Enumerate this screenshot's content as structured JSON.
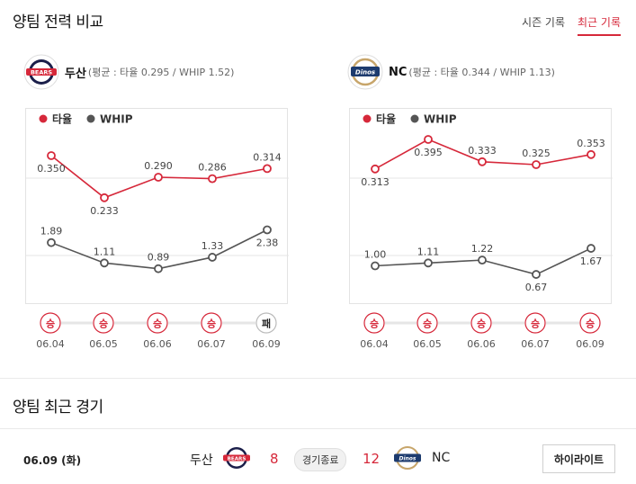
{
  "section1_title": "양팀 전력 비교",
  "tabs": [
    {
      "label": "시즌 기록",
      "active": false
    },
    {
      "label": "최근 기록",
      "active": true
    }
  ],
  "colors": {
    "avg": "#d6283a",
    "whip": "#555555",
    "win": "#d6283a",
    "loss": "#222222"
  },
  "teams": [
    {
      "name": "두산",
      "summary": "(평균 : 타율 0.295 / WHIP 1.52)",
      "logo_text": "BEARS",
      "logo_icon": "bears-logo-icon"
    },
    {
      "name": "NC",
      "summary": "(평균 : 타율 0.344 / WHIP 1.13)",
      "logo_text": "Dinos",
      "logo_icon": "dinos-logo-icon"
    }
  ],
  "chart_data": [
    {
      "type": "line",
      "legend": [
        "타율",
        "WHIP"
      ],
      "legend_placement": "top-left",
      "grid": "horizontal",
      "x": [
        "06.04",
        "06.05",
        "06.06",
        "06.07",
        "06.09"
      ],
      "series": [
        {
          "name": "타율",
          "values": [
            0.35,
            0.233,
            0.29,
            0.286,
            0.314
          ],
          "labels": [
            "0.350",
            "0.233",
            "0.290",
            "0.286",
            "0.314"
          ]
        },
        {
          "name": "WHIP",
          "values": [
            1.89,
            1.11,
            0.89,
            1.33,
            2.38
          ],
          "labels": [
            "1.89",
            "1.11",
            "0.89",
            "1.33",
            "2.38"
          ]
        }
      ],
      "results": [
        "승",
        "승",
        "승",
        "승",
        "패"
      ]
    },
    {
      "type": "line",
      "legend": [
        "타율",
        "WHIP"
      ],
      "legend_placement": "top-left",
      "grid": "horizontal",
      "x": [
        "06.04",
        "06.05",
        "06.06",
        "06.07",
        "06.09"
      ],
      "series": [
        {
          "name": "타율",
          "values": [
            0.313,
            0.395,
            0.333,
            0.325,
            0.353
          ],
          "labels": [
            "0.313",
            "0.395",
            "0.333",
            "0.325",
            "0.353"
          ]
        },
        {
          "name": "WHIP",
          "values": [
            1.0,
            1.11,
            1.22,
            0.67,
            1.67
          ],
          "labels": [
            "1.00",
            "1.11",
            "1.22",
            "0.67",
            "1.67"
          ]
        }
      ],
      "results": [
        "승",
        "승",
        "승",
        "승",
        "승"
      ]
    }
  ],
  "section2_title": "양팀 최근 경기",
  "game": {
    "date": "06.09 (화)",
    "home": "두산",
    "home_score": "8",
    "status": "경기종료",
    "away_score": "12",
    "away": "NC",
    "button": "하이라이트"
  }
}
